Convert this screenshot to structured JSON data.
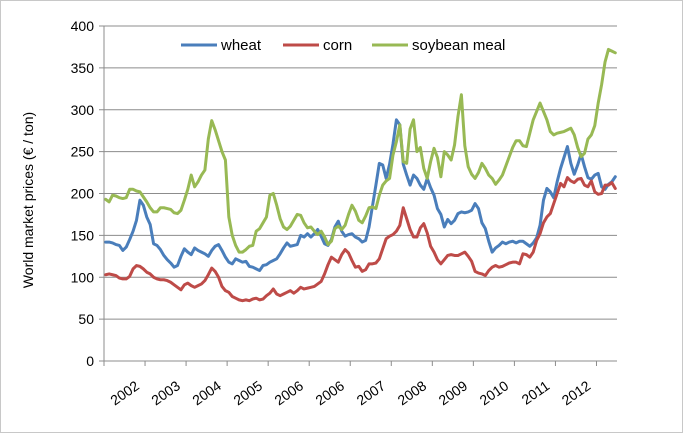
{
  "chart_data": {
    "type": "line",
    "title": "",
    "xlabel": "",
    "ylabel": "World market prices (€ / ton)",
    "ylim": [
      0,
      400
    ],
    "yticks": [
      0,
      50,
      100,
      150,
      200,
      250,
      300,
      350,
      400
    ],
    "grid": "horizontal",
    "legend_position": "top",
    "x_tick_labels": [
      "2002",
      "2003",
      "2004",
      "2005",
      "2006",
      "2006",
      "2007",
      "2008",
      "2009",
      "2010",
      "2011",
      "2012"
    ],
    "x_tick_positions": [
      6.5,
      18.5,
      30.5,
      42.5,
      54.5,
      66.5,
      78.5,
      90.5,
      102.5,
      114.5,
      126.5,
      138.5
    ],
    "x_count": 150,
    "series": [
      {
        "name": "wheat",
        "color": "#4a7ebb",
        "values": [
          142,
          142,
          141,
          139,
          138,
          132,
          136,
          145,
          155,
          168,
          192,
          186,
          172,
          163,
          140,
          138,
          133,
          126,
          121,
          117,
          112,
          114,
          125,
          134,
          130,
          127,
          135,
          132,
          130,
          128,
          125,
          132,
          137,
          139,
          132,
          124,
          118,
          116,
          122,
          120,
          118,
          119,
          113,
          112,
          110,
          108,
          114,
          115,
          118,
          120,
          122,
          128,
          135,
          141,
          137,
          138,
          139,
          150,
          148,
          152,
          148,
          152,
          157,
          149,
          140,
          138,
          145,
          160,
          167,
          155,
          149,
          151,
          152,
          148,
          146,
          142,
          144,
          160,
          185,
          210,
          236,
          234,
          218,
          235,
          259,
          288,
          282,
          235,
          222,
          210,
          222,
          218,
          210,
          205,
          218,
          207,
          198,
          182,
          175,
          160,
          169,
          164,
          168,
          176,
          178,
          177,
          178,
          180,
          188,
          182,
          165,
          158,
          143,
          130,
          135,
          138,
          142,
          140,
          142,
          143,
          141,
          143,
          143,
          140,
          137,
          141,
          147,
          162,
          192,
          206,
          202,
          195,
          214,
          230,
          243,
          256,
          236,
          223,
          234,
          247,
          232,
          219,
          217,
          222,
          224,
          208,
          205,
          211,
          214,
          220
        ]
      },
      {
        "name": "corn",
        "color": "#be4b48",
        "values": [
          103,
          104,
          103,
          102,
          99,
          98,
          98,
          101,
          110,
          114,
          113,
          110,
          106,
          104,
          100,
          98,
          97,
          97,
          96,
          94,
          91,
          88,
          85,
          91,
          93,
          90,
          88,
          90,
          92,
          96,
          103,
          111,
          107,
          100,
          89,
          84,
          82,
          77,
          75,
          73,
          72,
          73,
          72,
          74,
          75,
          73,
          74,
          78,
          81,
          86,
          80,
          78,
          80,
          82,
          84,
          81,
          84,
          88,
          86,
          87,
          88,
          89,
          92,
          95,
          104,
          115,
          124,
          121,
          118,
          127,
          133,
          129,
          120,
          112,
          113,
          107,
          109,
          116,
          116,
          117,
          122,
          134,
          146,
          149,
          151,
          155,
          162,
          183,
          170,
          157,
          148,
          148,
          159,
          164,
          153,
          137,
          130,
          121,
          116,
          121,
          126,
          127,
          126,
          126,
          128,
          130,
          125,
          119,
          107,
          105,
          104,
          102,
          108,
          112,
          114,
          112,
          113,
          115,
          117,
          118,
          118,
          116,
          128,
          127,
          124,
          130,
          144,
          152,
          165,
          172,
          176,
          188,
          200,
          212,
          208,
          219,
          215,
          213,
          217,
          218,
          210,
          208,
          215,
          202,
          199,
          200,
          210,
          210,
          213,
          206
        ]
      },
      {
        "name": "soybean meal",
        "color": "#98b954",
        "values": [
          193,
          190,
          198,
          197,
          195,
          194,
          195,
          205,
          205,
          203,
          202,
          196,
          190,
          183,
          178,
          178,
          183,
          183,
          182,
          181,
          177,
          176,
          180,
          192,
          205,
          222,
          208,
          214,
          222,
          228,
          265,
          287,
          276,
          263,
          250,
          240,
          172,
          150,
          138,
          130,
          130,
          133,
          137,
          138,
          155,
          158,
          165,
          172,
          198,
          200,
          186,
          170,
          160,
          157,
          161,
          168,
          175,
          174,
          165,
          159,
          160,
          155,
          151,
          155,
          148,
          139,
          143,
          158,
          161,
          157,
          162,
          175,
          186,
          179,
          168,
          165,
          173,
          183,
          184,
          182,
          198,
          210,
          215,
          218,
          246,
          262,
          282,
          238,
          236,
          277,
          288,
          250,
          255,
          230,
          218,
          238,
          254,
          243,
          220,
          250,
          246,
          240,
          258,
          292,
          318,
          257,
          232,
          223,
          218,
          225,
          236,
          230,
          222,
          218,
          211,
          216,
          222,
          233,
          244,
          255,
          263,
          263,
          257,
          256,
          272,
          288,
          298,
          308,
          298,
          288,
          274,
          270,
          272,
          273,
          274,
          276,
          278,
          270,
          255,
          244,
          248,
          265,
          270,
          281,
          308,
          330,
          357,
          372,
          370,
          368
        ]
      }
    ]
  }
}
